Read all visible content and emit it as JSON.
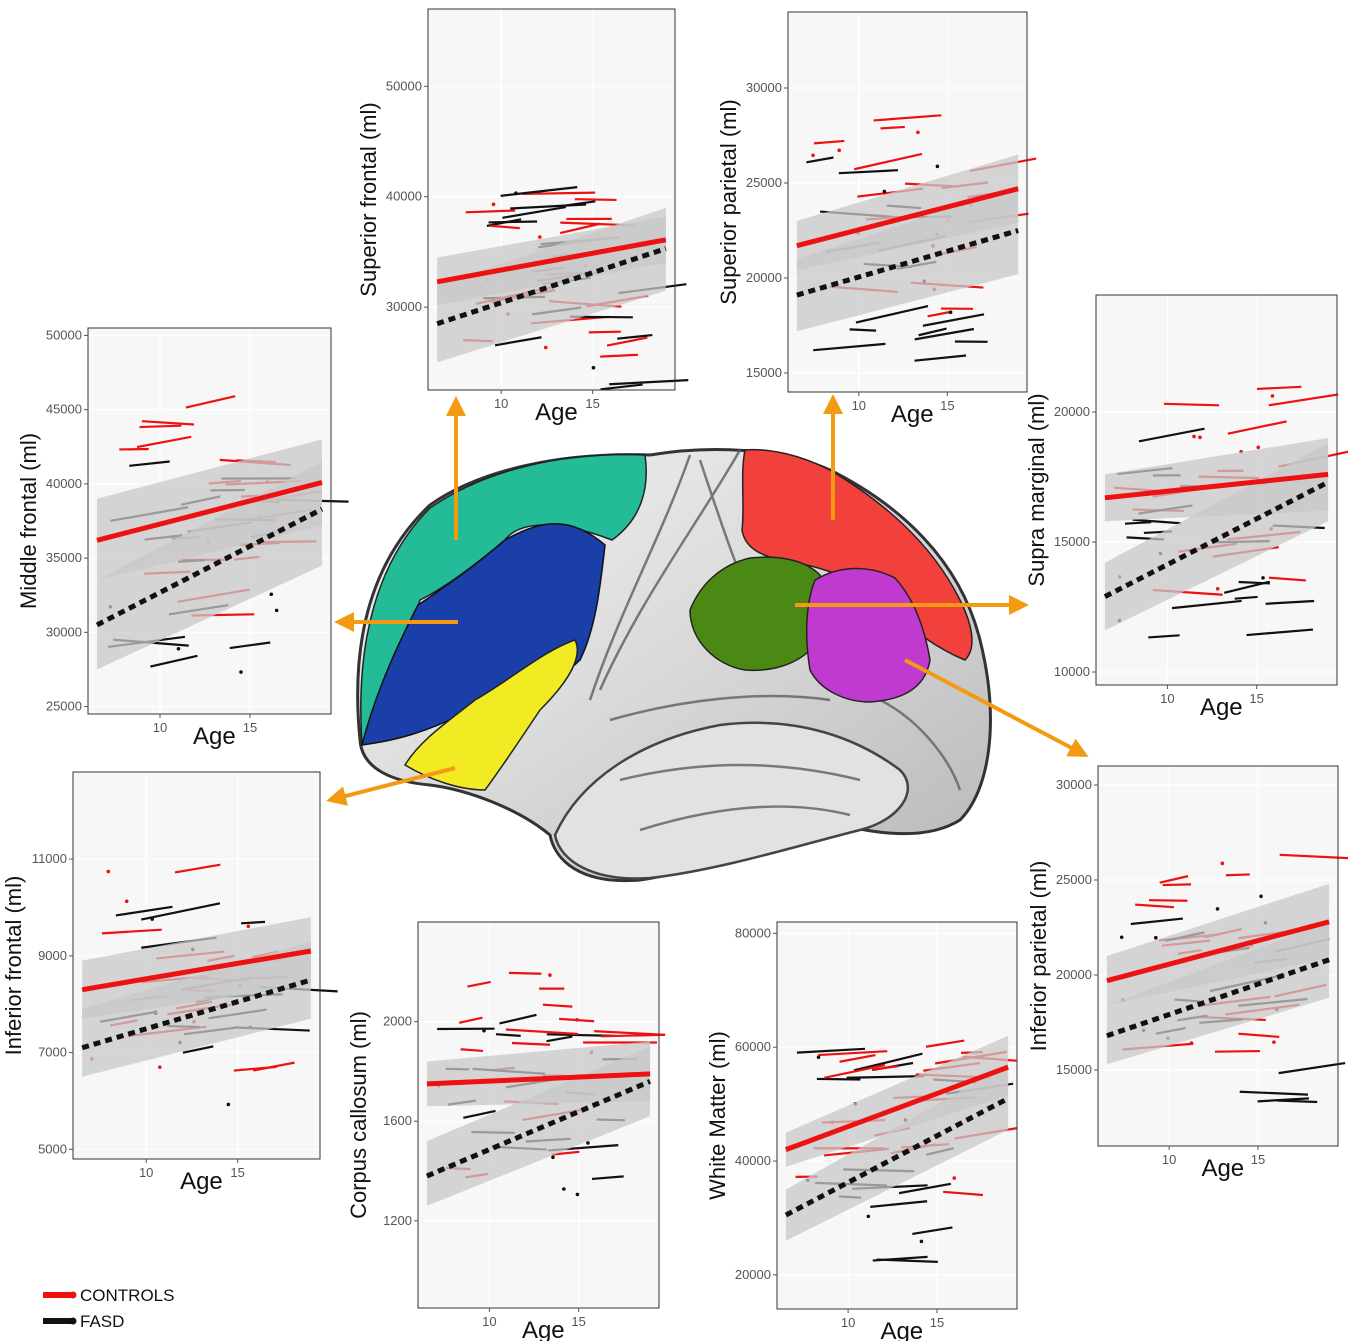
{
  "legend": {
    "controls_label": "CONTROLS",
    "fasd_label": "FASD",
    "controls_color": "#ee1111",
    "fasd_color": "#111111"
  },
  "colors": {
    "band": "#c8c8c8",
    "arrow": "#f39a12",
    "frontal_superior": "#23bb98",
    "frontal_middle": "#1a3fa8",
    "frontal_inferior": "#f2ea22",
    "parietal_superior": "#f2403c",
    "supra_marginal": "#4a8a14",
    "parietal_inferior": "#c13ad0"
  },
  "chart_data": [
    {
      "type": "scatter",
      "panel": "superior-frontal",
      "ylabel": "Superior frontal (ml)",
      "xlabel": "Age",
      "xlim": [
        6,
        19.5
      ],
      "ylim": [
        22500,
        57000
      ],
      "xticks": [
        10,
        15
      ],
      "yticks": [
        30000,
        40000,
        50000
      ],
      "controls_fit": [
        [
          6.5,
          32300
        ],
        [
          19,
          36100
        ]
      ],
      "controls_band": [
        [
          6.5,
          34500,
          30200
        ],
        [
          19,
          38200,
          34000
        ]
      ],
      "fasd_fit": [
        [
          6.5,
          28500
        ],
        [
          19,
          35300
        ]
      ],
      "fasd_band": [
        [
          6.5,
          32000,
          25000
        ],
        [
          19,
          39000,
          31500
        ]
      ]
    },
    {
      "type": "scatter",
      "panel": "superior-parietal",
      "ylabel": "Superior parietal (ml)",
      "xlabel": "Age",
      "xlim": [
        6,
        19.5
      ],
      "ylim": [
        14000,
        34000
      ],
      "xticks": [
        10,
        15
      ],
      "yticks": [
        15000,
        20000,
        25000,
        30000
      ],
      "controls_fit": [
        [
          6.5,
          21700
        ],
        [
          19,
          24700
        ]
      ],
      "controls_band": [
        [
          6.5,
          23000,
          20400
        ],
        [
          19,
          26500,
          22900
        ]
      ],
      "fasd_fit": [
        [
          6.5,
          19100
        ],
        [
          19,
          22500
        ]
      ],
      "fasd_band": [
        [
          6.5,
          21000,
          17200
        ],
        [
          19,
          24800,
          20200
        ]
      ]
    },
    {
      "type": "scatter",
      "panel": "middle-frontal",
      "ylabel": "Middle frontal (ml)",
      "xlabel": "Age",
      "xlim": [
        6,
        19.5
      ],
      "ylim": [
        24500,
        50500
      ],
      "xticks": [
        10,
        15
      ],
      "yticks": [
        25000,
        30000,
        35000,
        40000,
        45000,
        50000
      ],
      "controls_fit": [
        [
          6.5,
          36200
        ],
        [
          19,
          40100
        ]
      ],
      "controls_band": [
        [
          6.5,
          39000,
          33500
        ],
        [
          19,
          43000,
          37200
        ]
      ],
      "fasd_fit": [
        [
          6.5,
          30500
        ],
        [
          19,
          38300
        ]
      ],
      "fasd_band": [
        [
          6.5,
          33500,
          27500
        ],
        [
          19,
          41500,
          34500
        ]
      ]
    },
    {
      "type": "scatter",
      "panel": "supra-marginal",
      "ylabel": "Supra marginal (ml)",
      "xlabel": "Age",
      "xlim": [
        6,
        19.5
      ],
      "ylim": [
        9500,
        24500
      ],
      "xticks": [
        10,
        15
      ],
      "yticks": [
        10000,
        15000,
        20000
      ],
      "controls_fit": [
        [
          6.5,
          16700
        ],
        [
          19,
          17600
        ]
      ],
      "controls_band": [
        [
          6.5,
          17600,
          15800
        ],
        [
          19,
          19000,
          16200
        ]
      ],
      "fasd_fit": [
        [
          6.5,
          12900
        ],
        [
          19,
          17300
        ]
      ],
      "fasd_band": [
        [
          6.5,
          14200,
          11600
        ],
        [
          19,
          18800,
          15800
        ]
      ]
    },
    {
      "type": "scatter",
      "panel": "inferior-frontal",
      "ylabel": "Inferior frontal (ml)",
      "xlabel": "Age",
      "xlim": [
        6,
        19.5
      ],
      "ylim": [
        4800,
        12800
      ],
      "xticks": [
        10,
        15
      ],
      "yticks": [
        5000,
        7000,
        9000,
        11000
      ],
      "ytick_labels": [
        "5000",
        "7000",
        "9000",
        "11000"
      ],
      "controls_fit": [
        [
          6.5,
          8300
        ],
        [
          19,
          9100
        ]
      ],
      "controls_band": [
        [
          6.5,
          8900,
          7700
        ],
        [
          19,
          9800,
          8400
        ]
      ],
      "fasd_fit": [
        [
          6.5,
          7100
        ],
        [
          19,
          8500
        ]
      ],
      "fasd_band": [
        [
          6.5,
          7900,
          6500
        ],
        [
          19,
          9300,
          7700
        ]
      ]
    },
    {
      "type": "scatter",
      "panel": "corpus-callosum",
      "ylabel": "Corpus callosum (ml)",
      "xlabel": "Age",
      "xlim": [
        6,
        19.5
      ],
      "ylim": [
        850,
        2400
      ],
      "xticks": [
        10,
        15
      ],
      "yticks": [
        1200,
        1600,
        2000
      ],
      "controls_fit": [
        [
          6.5,
          1750
        ],
        [
          19,
          1790
        ]
      ],
      "controls_band": [
        [
          6.5,
          1840,
          1660
        ],
        [
          19,
          1920,
          1680
        ]
      ],
      "fasd_fit": [
        [
          6.5,
          1380
        ],
        [
          19,
          1760
        ]
      ],
      "fasd_band": [
        [
          6.5,
          1520,
          1260
        ],
        [
          19,
          1900,
          1620
        ]
      ]
    },
    {
      "type": "scatter",
      "panel": "white-matter",
      "ylabel": "White Matter (ml)",
      "xlabel": "Age",
      "xlim": [
        6,
        19.5
      ],
      "ylim": [
        14000,
        82000
      ],
      "xticks": [
        10,
        15
      ],
      "yticks": [
        20000,
        40000,
        60000,
        80000
      ],
      "ytick_labels": [
        "20000",
        "40000",
        "60000",
        "80000"
      ],
      "controls_fit": [
        [
          6.5,
          42000
        ],
        [
          19,
          56500
        ]
      ],
      "controls_band": [
        [
          6.5,
          45000,
          39000
        ],
        [
          19,
          62000,
          51500
        ]
      ],
      "fasd_fit": [
        [
          6.5,
          30500
        ],
        [
          19,
          51000
        ]
      ],
      "fasd_band": [
        [
          6.5,
          35000,
          26000
        ],
        [
          19,
          57000,
          45500
        ]
      ]
    },
    {
      "type": "scatter",
      "panel": "inferior-parietal",
      "ylabel": "Inferior parietal (ml)",
      "xlabel": "Age",
      "xlim": [
        6,
        19.5
      ],
      "ylim": [
        11000,
        31000
      ],
      "xticks": [
        10,
        15
      ],
      "yticks": [
        15000,
        20000,
        25000,
        30000
      ],
      "controls_fit": [
        [
          6.5,
          19700
        ],
        [
          19,
          22800
        ]
      ],
      "controls_band": [
        [
          6.5,
          21000,
          18400
        ],
        [
          19,
          24800,
          20900
        ]
      ],
      "fasd_fit": [
        [
          6.5,
          16800
        ],
        [
          19,
          20800
        ]
      ],
      "fasd_band": [
        [
          6.5,
          18400,
          15300
        ],
        [
          19,
          22800,
          18800
        ]
      ]
    }
  ]
}
